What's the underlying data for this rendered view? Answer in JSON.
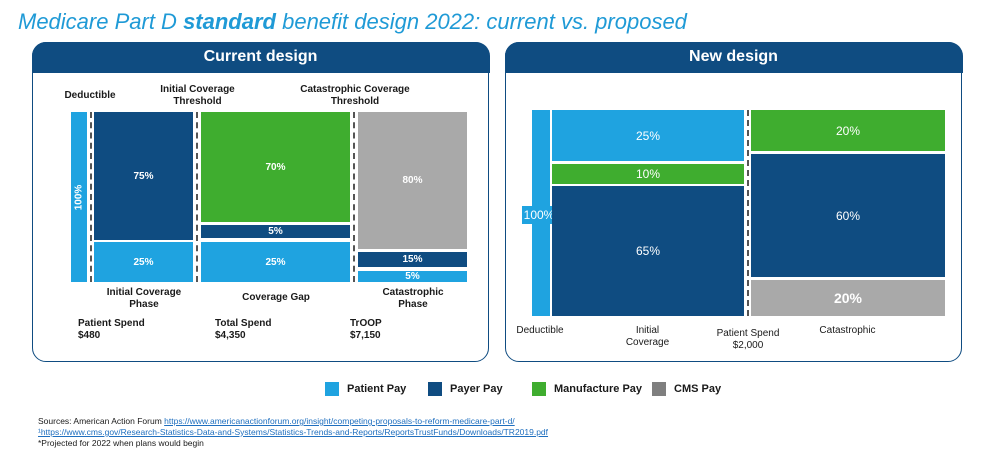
{
  "title": {
    "part1": "Medicare Part D ",
    "bold": "standard",
    "part2": " benefit design 2022: current vs. proposed"
  },
  "chart_data": [
    {
      "type": "bar",
      "title": "Current design",
      "phases": [
        "Deductible",
        "Initial Coverage Phase",
        "Coverage Gap",
        "Catastrophic Phase"
      ],
      "thresholds": [
        "Initial Coverage Threshold",
        "Catastrophic Coverage Threshold"
      ],
      "series": [
        {
          "name": "Patient Pay",
          "values": [
            100,
            25,
            25,
            5
          ]
        },
        {
          "name": "Payer Pay",
          "values": [
            0,
            75,
            5,
            15
          ]
        },
        {
          "name": "Manufacture Pay",
          "values": [
            0,
            0,
            70,
            0
          ]
        },
        {
          "name": "CMS Pay",
          "values": [
            0,
            0,
            0,
            80
          ]
        }
      ],
      "labels": {
        "deductible_pct": "100%",
        "ic_payer": "75%",
        "ic_patient": "25%",
        "gap_manu": "70%",
        "gap_payer": "5%",
        "gap_patient": "25%",
        "cat_cms": "80%",
        "cat_payer": "15%",
        "cat_patient": "5%"
      },
      "spend": [
        {
          "label": "Patient Spend",
          "value": "$480"
        },
        {
          "label": "Total Spend",
          "value": "$4,350"
        },
        {
          "label": "TrOOP",
          "value": "$7,150"
        }
      ]
    },
    {
      "type": "bar",
      "title": "New design",
      "phases": [
        "Deductible",
        "Initial Coverage",
        "Catastrophic"
      ],
      "series": [
        {
          "name": "Patient Pay",
          "values": [
            100,
            25,
            0
          ]
        },
        {
          "name": "Payer Pay",
          "values": [
            0,
            65,
            60
          ]
        },
        {
          "name": "Manufacture Pay",
          "values": [
            0,
            10,
            20
          ]
        },
        {
          "name": "CMS Pay",
          "values": [
            0,
            0,
            20
          ]
        }
      ],
      "labels": {
        "deductible_pct": "100%",
        "ic_patient": "25%",
        "ic_manu": "10%",
        "ic_payer": "65%",
        "cat_manu": "20%",
        "cat_payer": "60%",
        "cat_cms": "20%"
      },
      "threshold": {
        "label": "Patient Spend",
        "value": "$2,000"
      }
    }
  ],
  "current": {
    "header": "Current design",
    "deductible": "Deductible",
    "ict": "Initial Coverage Threshold",
    "cct": "Catastrophic Coverage Threshold",
    "ic_phase": "Initial Coverage Phase",
    "gap": "Coverage Gap",
    "cat_phase": "Catastrophic Phase",
    "patient_spend": "Patient Spend",
    "patient_spend_val": "$480",
    "total_spend": "Total Spend",
    "total_spend_val": "$4,350",
    "troop": "TrOOP",
    "troop_val": "$7,150"
  },
  "new": {
    "header": "New design",
    "deductible": "Deductible",
    "ic": "Initial Coverage",
    "patient_spend": "Patient Spend",
    "patient_spend_val": "$2,000",
    "catastrophic": "Catastrophic"
  },
  "legend": [
    {
      "label": "Patient Pay",
      "color": "#1fa3e0"
    },
    {
      "label": "Payer Pay",
      "color": "#0f4c81"
    },
    {
      "label": "Manufacture Pay",
      "color": "#3fad2f"
    },
    {
      "label": "CMS Pay",
      "color": "#7f7f7f"
    }
  ],
  "sources": {
    "line1_prefix": "Sources: American Action Forum ",
    "line1_link": "https://www.americanactionforum.org/insight/competing-proposals-to-reform-medicare-part-d/",
    "line2_link": "¹https://www.cms.gov/Research-Statistics-Data-and-Systems/Statistics-Trends-and-Reports/ReportsTrustFunds/Downloads/TR2019.pdf",
    "line3": "*Projected for 2022 when plans would begin"
  }
}
